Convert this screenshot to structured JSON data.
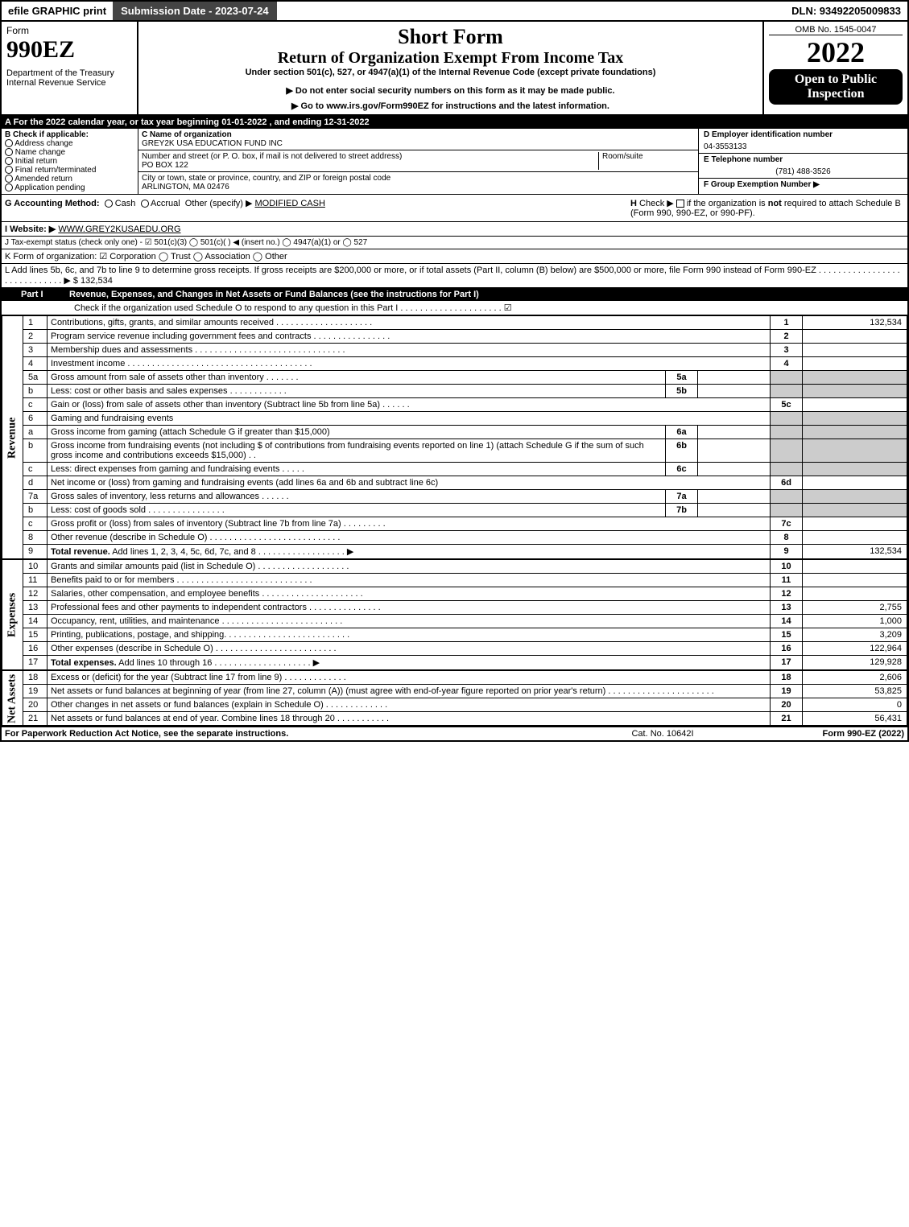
{
  "topbar": {
    "efile": "efile GRAPHIC print",
    "subdate": "Submission Date - 2023-07-24",
    "dln": "DLN: 93492205009833"
  },
  "header": {
    "form": "Form",
    "f990": "990EZ",
    "dept": "Department of the Treasury\nInternal Revenue Service",
    "short": "Short Form",
    "return": "Return of Organization Exempt From Income Tax",
    "under": "Under section 501(c), 527, or 4947(a)(1) of the Internal Revenue Code (except private foundations)",
    "warn": "▶ Do not enter social security numbers on this form as it may be made public.",
    "goto": "▶ Go to www.irs.gov/Form990EZ for instructions and the latest information.",
    "omb": "OMB No. 1545-0047",
    "year": "2022",
    "open": "Open to Public Inspection"
  },
  "A": "A  For the 2022 calendar year, or tax year beginning 01-01-2022  , and ending 12-31-2022",
  "B": {
    "title": "B  Check if applicable:",
    "items": [
      "Address change",
      "Name change",
      "Initial return",
      "Final return/terminated",
      "Amended return",
      "Application pending"
    ]
  },
  "C": {
    "nameLabel": "C Name of organization",
    "name": "GREY2K USA EDUCATION FUND INC",
    "streetLabel": "Number and street (or P. O. box, if mail is not delivered to street address)",
    "roomLabel": "Room/suite",
    "street": "PO BOX 122",
    "cityLabel": "City or town, state or province, country, and ZIP or foreign postal code",
    "city": "ARLINGTON, MA  02476"
  },
  "D": {
    "einLabel": "D Employer identification number",
    "ein": "04-3553133",
    "telLabel": "E Telephone number",
    "tel": "(781) 488-3526",
    "grpLabel": "F Group Exemption Number  ▶"
  },
  "G": {
    "label": "G Accounting Method:",
    "cash": "Cash",
    "accrual": "Accrual",
    "other": "Other (specify) ▶",
    "val": "MODIFIED CASH"
  },
  "H": {
    "text": "H  Check ▶      if the organization is not required to attach Schedule B (Form 990, 990-EZ, or 990-PF)."
  },
  "I": {
    "label": "I Website: ▶",
    "val": "WWW.GREY2KUSAEDU.ORG"
  },
  "J": {
    "text": "J Tax-exempt status (check only one) - ☑ 501(c)(3)  ◯ 501(c)(  ) ◀ (insert no.)  ◯ 4947(a)(1) or  ◯ 527"
  },
  "K": {
    "text": "K Form of organization:   ☑ Corporation   ◯ Trust   ◯ Association   ◯ Other"
  },
  "L": {
    "text": "L Add lines 5b, 6c, and 7b to line 9 to determine gross receipts. If gross receipts are $200,000 or more, or if total assets (Part II, column (B) below) are $500,000 or more, file Form 990 instead of Form 990-EZ  .  .  .  .  .  .  .  .  .  .  .  .  .  .  .  .  .  .  .  .  .  .  .  .  .  .  .  .  .  ▶ $",
    "val": "132,534"
  },
  "part1": {
    "label": "Part I",
    "title": "Revenue, Expenses, and Changes in Net Assets or Fund Balances (see the instructions for Part I)",
    "check": "Check if the organization used Schedule O to respond to any question in this Part I  .  .  .  .  .  .  .  .  .  .  .  .  .  .  .  .  .  .  .  .  .  ☑"
  },
  "revenue": {
    "label": "Revenue",
    "rows": [
      {
        "n": "1",
        "d": "Contributions, gifts, grants, and similar amounts received  .  .  .  .  .  .  .  .  .  .  .  .  .  .  .  .  .  .  .  .",
        "ln": "1",
        "v": "132,534"
      },
      {
        "n": "2",
        "d": "Program service revenue including government fees and contracts  .  .  .  .  .  .  .  .  .  .  .  .  .  .  .  .",
        "ln": "2",
        "v": ""
      },
      {
        "n": "3",
        "d": "Membership dues and assessments  .  .  .  .  .  .  .  .  .  .  .  .  .  .  .  .  .  .  .  .  .  .  .  .  .  .  .  .  .  .  .",
        "ln": "3",
        "v": ""
      },
      {
        "n": "4",
        "d": "Investment income  .  .  .  .  .  .  .  .  .  .  .  .  .  .  .  .  .  .  .  .  .  .  .  .  .  .  .  .  .  .  .  .  .  .  .  .  .  .",
        "ln": "4",
        "v": ""
      },
      {
        "n": "5a",
        "d": "Gross amount from sale of assets other than inventory  .  .  .  .  .  .  .",
        "sub": "5a",
        "sv": "",
        "shade": true
      },
      {
        "n": "b",
        "d": "Less: cost or other basis and sales expenses  .  .  .  .  .  .  .  .  .  .  .  .",
        "sub": "5b",
        "sv": "",
        "shade": true
      },
      {
        "n": "c",
        "d": "Gain or (loss) from sale of assets other than inventory (Subtract line 5b from line 5a)  .  .  .  .  .  .",
        "ln": "5c",
        "v": ""
      },
      {
        "n": "6",
        "d": "Gaming and fundraising events",
        "shade": true,
        "noln": true
      },
      {
        "n": "a",
        "d": "Gross income from gaming (attach Schedule G if greater than $15,000)",
        "sub": "6a",
        "sv": "",
        "shade": true
      },
      {
        "n": "b",
        "d": "Gross income from fundraising events (not including $                      of contributions from fundraising events reported on line 1) (attach Schedule G if the sum of such gross income and contributions exceeds $15,000)   .  .",
        "sub": "6b",
        "sv": "",
        "shade": true
      },
      {
        "n": "c",
        "d": "Less: direct expenses from gaming and fundraising events   .  .  .  .  .",
        "sub": "6c",
        "sv": "",
        "shade": true
      },
      {
        "n": "d",
        "d": "Net income or (loss) from gaming and fundraising events (add lines 6a and 6b and subtract line 6c)",
        "ln": "6d",
        "v": ""
      },
      {
        "n": "7a",
        "d": "Gross sales of inventory, less returns and allowances  .  .  .  .  .  .",
        "sub": "7a",
        "sv": "",
        "shade": true
      },
      {
        "n": "b",
        "d": "Less: cost of goods sold        .  .  .  .  .  .  .  .  .  .  .  .  .  .  .  .",
        "sub": "7b",
        "sv": "",
        "shade": true
      },
      {
        "n": "c",
        "d": "Gross profit or (loss) from sales of inventory (Subtract line 7b from line 7a)  .  .  .  .  .  .  .  .  .",
        "ln": "7c",
        "v": ""
      },
      {
        "n": "8",
        "d": "Other revenue (describe in Schedule O)  .  .  .  .  .  .  .  .  .  .  .  .  .  .  .  .  .  .  .  .  .  .  .  .  .  .  .",
        "ln": "8",
        "v": ""
      },
      {
        "n": "9",
        "d": "Total revenue. Add lines 1, 2, 3, 4, 5c, 6d, 7c, and 8  .  .  .  .  .  .  .  .  .  .  .  .  .  .  .  .  .  .  ▶",
        "ln": "9",
        "v": "132,534",
        "bold": true
      }
    ]
  },
  "expenses": {
    "label": "Expenses",
    "rows": [
      {
        "n": "10",
        "d": "Grants and similar amounts paid (list in Schedule O)  .  .  .  .  .  .  .  .  .  .  .  .  .  .  .  .  .  .  .",
        "ln": "10",
        "v": ""
      },
      {
        "n": "11",
        "d": "Benefits paid to or for members     .  .  .  .  .  .  .  .  .  .  .  .  .  .  .  .  .  .  .  .  .  .  .  .  .  .  .  .",
        "ln": "11",
        "v": ""
      },
      {
        "n": "12",
        "d": "Salaries, other compensation, and employee benefits  .  .  .  .  .  .  .  .  .  .  .  .  .  .  .  .  .  .  .  .  .",
        "ln": "12",
        "v": ""
      },
      {
        "n": "13",
        "d": "Professional fees and other payments to independent contractors  .  .  .  .  .  .  .  .  .  .  .  .  .  .  .",
        "ln": "13",
        "v": "2,755"
      },
      {
        "n": "14",
        "d": "Occupancy, rent, utilities, and maintenance  .  .  .  .  .  .  .  .  .  .  .  .  .  .  .  .  .  .  .  .  .  .  .  .  .",
        "ln": "14",
        "v": "1,000"
      },
      {
        "n": "15",
        "d": "Printing, publications, postage, and shipping.  .  .  .  .  .  .  .  .  .  .  .  .  .  .  .  .  .  .  .  .  .  .  .  .  .",
        "ln": "15",
        "v": "3,209"
      },
      {
        "n": "16",
        "d": "Other expenses (describe in Schedule O)     .  .  .  .  .  .  .  .  .  .  .  .  .  .  .  .  .  .  .  .  .  .  .  .  .",
        "ln": "16",
        "v": "122,964"
      },
      {
        "n": "17",
        "d": "Total expenses. Add lines 10 through 16     .  .  .  .  .  .  .  .  .  .  .  .  .  .  .  .  .  .  .  .  ▶",
        "ln": "17",
        "v": "129,928",
        "bold": true
      }
    ]
  },
  "netassets": {
    "label": "Net Assets",
    "rows": [
      {
        "n": "18",
        "d": "Excess or (deficit) for the year (Subtract line 17 from line 9)       .  .  .  .  .  .  .  .  .  .  .  .  .",
        "ln": "18",
        "v": "2,606"
      },
      {
        "n": "19",
        "d": "Net assets or fund balances at beginning of year (from line 27, column (A)) (must agree with end-of-year figure reported on prior year's return)  .  .  .  .  .  .  .  .  .  .  .  .  .  .  .  .  .  .  .  .  .  .",
        "ln": "19",
        "v": "53,825"
      },
      {
        "n": "20",
        "d": "Other changes in net assets or fund balances (explain in Schedule O)  .  .  .  .  .  .  .  .  .  .  .  .  .",
        "ln": "20",
        "v": "0"
      },
      {
        "n": "21",
        "d": "Net assets or fund balances at end of year. Combine lines 18 through 20  .  .  .  .  .  .  .  .  .  .  .",
        "ln": "21",
        "v": "56,431"
      }
    ]
  },
  "footer": {
    "left": "For Paperwork Reduction Act Notice, see the separate instructions.",
    "mid": "Cat. No. 10642I",
    "right": "Form 990-EZ (2022)"
  },
  "colors": {
    "black": "#000000",
    "darkgray": "#444444",
    "shade": "#cccccc",
    "link": "#0066cc",
    "check": "#44aa88"
  }
}
